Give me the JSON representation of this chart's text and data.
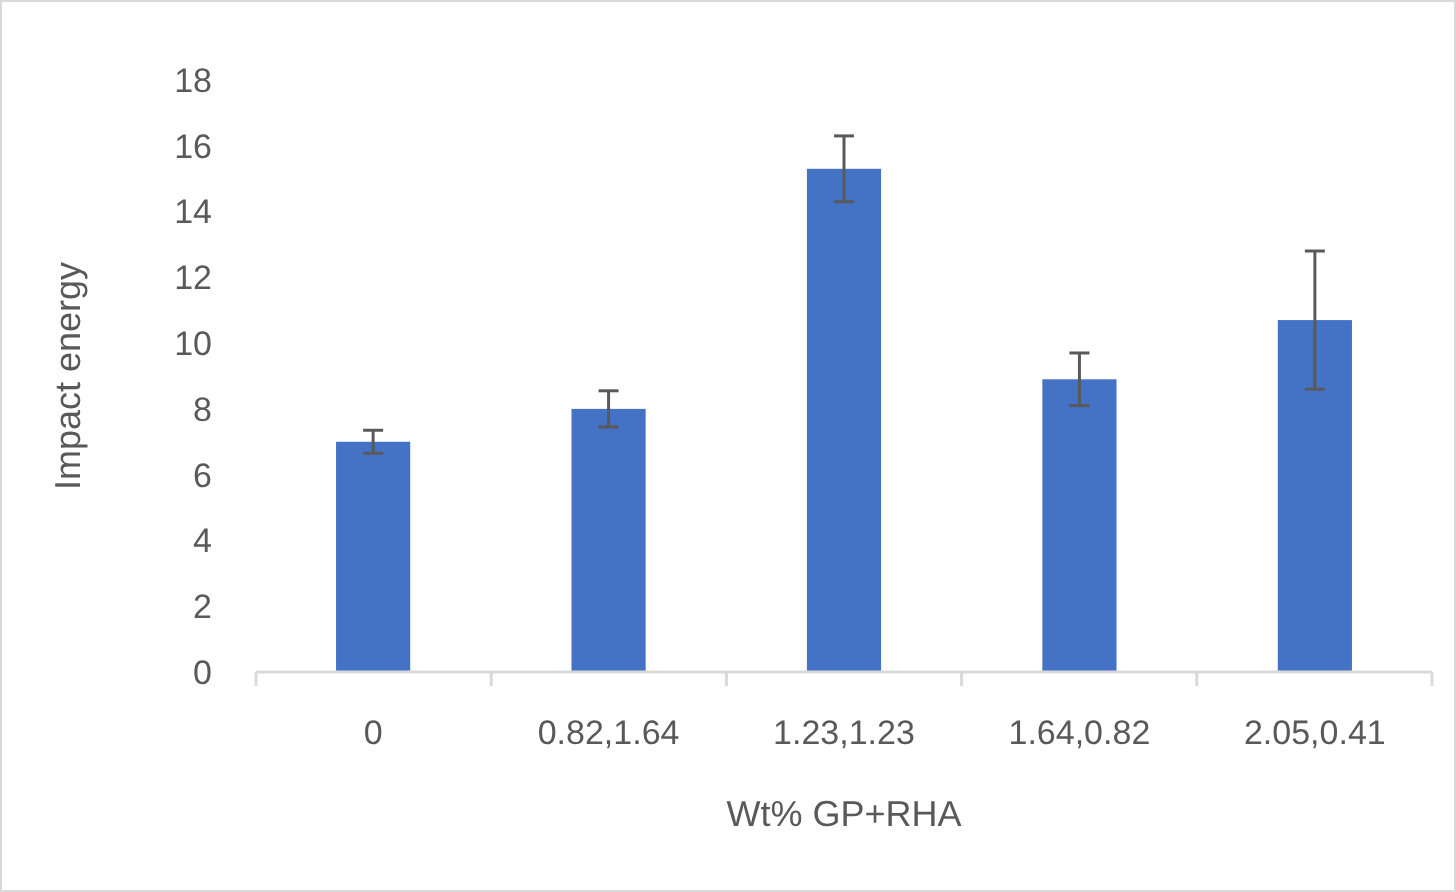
{
  "chart_data": {
    "type": "bar",
    "xlabel": "Wt% GP+RHA",
    "ylabel": "Impact energy",
    "categories": [
      "0",
      "0.82,1.64",
      "1.23,1.23",
      "1.64,0.82",
      "2.05,0.41"
    ],
    "values": [
      7.0,
      8.0,
      15.3,
      8.9,
      10.7
    ],
    "errors": [
      0.35,
      0.55,
      1.0,
      0.8,
      2.1
    ],
    "color": "#4472c4",
    "ylim": [
      0,
      18
    ],
    "yticks": [
      0,
      2,
      4,
      6,
      8,
      10,
      12,
      14,
      16,
      18
    ],
    "grid": false
  }
}
